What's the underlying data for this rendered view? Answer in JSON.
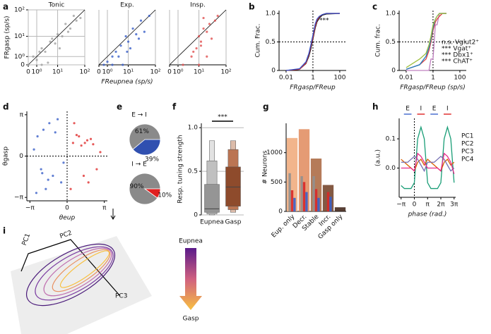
{
  "chart_data": [
    {
      "type": "scatter",
      "panel": "a",
      "title": "Tonic",
      "ylabel": "FRgasp (sp/s)",
      "xscale": "symlog",
      "yscale": "symlog",
      "xlim": [
        0,
        100
      ],
      "ylim": [
        0,
        100
      ],
      "xticks": [
        0,
        {
          "value": 1,
          "label": "10⁰"
        },
        {
          "value": 10,
          "label": "10¹"
        },
        {
          "value": 100,
          "label": "10²"
        }
      ],
      "yticks": [
        0,
        {
          "value": 1,
          "label": "10⁰"
        },
        {
          "value": 10,
          "label": "10¹"
        },
        {
          "value": 100,
          "label": "10²"
        }
      ],
      "grid": true,
      "diagonal": true,
      "series": [
        {
          "color": "#a0a0a0",
          "x": [
            0,
            0.5,
            1,
            2,
            3,
            5,
            8,
            10,
            15,
            20,
            30,
            50,
            2,
            6,
            12,
            25,
            40,
            4,
            1.5,
            70
          ],
          "values": [
            0,
            1,
            0.5,
            3,
            2,
            6,
            5,
            12,
            10,
            30,
            20,
            40,
            0,
            8,
            3,
            15,
            60,
            0.2,
            2,
            50
          ]
        }
      ]
    },
    {
      "type": "scatter",
      "title": "Exp.",
      "xlabel": "FReupnea (sp/s)",
      "xscale": "symlog",
      "yscale": "symlog",
      "xlim": [
        0,
        100
      ],
      "ylim": [
        0,
        100
      ],
      "xticks": [
        0,
        {
          "value": 1,
          "label": "10⁰"
        },
        {
          "value": 10,
          "label": "10¹"
        },
        {
          "value": 100,
          "label": "10²"
        }
      ],
      "grid": true,
      "diagonal": true,
      "series": [
        {
          "color": "#3a5fc8",
          "x": [
            0.5,
            1,
            2,
            3,
            5,
            8,
            10,
            15,
            20,
            30,
            40,
            60,
            6,
            12,
            25,
            4,
            2,
            9
          ],
          "values": [
            0,
            0.3,
            1,
            2,
            4,
            10,
            6,
            20,
            12,
            40,
            15,
            60,
            0,
            3,
            8,
            1,
            0,
            2
          ]
        }
      ]
    },
    {
      "type": "scatter",
      "title": "Insp.",
      "xscale": "symlog",
      "yscale": "symlog",
      "xlim": [
        0,
        100
      ],
      "ylim": [
        0,
        100
      ],
      "xticks": [
        0,
        {
          "value": 1,
          "label": "10⁰"
        },
        {
          "value": 10,
          "label": "10¹"
        },
        {
          "value": 100,
          "label": "10²"
        }
      ],
      "grid": true,
      "diagonal": true,
      "series": [
        {
          "color": "#e05050",
          "x": [
            2,
            5,
            8,
            10,
            12,
            15,
            20,
            25,
            30,
            40,
            10,
            15,
            6,
            20,
            50,
            12
          ],
          "values": [
            0,
            1,
            3,
            10,
            6,
            20,
            15,
            30,
            8,
            40,
            0,
            50,
            2,
            1,
            60,
            4
          ]
        }
      ]
    },
    {
      "type": "line",
      "panel": "b",
      "ylabel": "Cum. Frac.",
      "xlabel": "FRgasp/FReup",
      "xscale": "log",
      "xlim": [
        0.003,
        300
      ],
      "ylim": [
        0,
        1.05
      ],
      "xticks": [
        0.01,
        1,
        100
      ],
      "yticks": [
        0,
        0.5,
        {
          "value": 1,
          "label": "1.0"
        }
      ],
      "vline": 1,
      "hline": 0.5,
      "annotation": "***",
      "x": [
        0.01,
        0.1,
        0.3,
        0.5,
        0.7,
        1,
        1.5,
        2,
        3,
        5,
        10,
        100
      ],
      "series": [
        {
          "color": "#111111",
          "values": [
            0,
            0.02,
            0.12,
            0.25,
            0.38,
            0.55,
            0.75,
            0.85,
            0.92,
            0.97,
            0.99,
            1
          ]
        },
        {
          "color": "#e03030",
          "values": [
            0,
            0.02,
            0.13,
            0.28,
            0.42,
            0.58,
            0.78,
            0.88,
            0.94,
            0.98,
            1,
            1
          ]
        },
        {
          "color": "#3050c8",
          "values": [
            0,
            0.03,
            0.15,
            0.3,
            0.45,
            0.62,
            0.82,
            0.9,
            0.95,
            0.98,
            1,
            1
          ]
        }
      ]
    },
    {
      "type": "line",
      "panel": "c",
      "ylabel": "Cum. frac.",
      "xlabel": "FRgasp/FReup (sp/s)",
      "xscale": "log",
      "xlim": [
        0.003,
        300
      ],
      "ylim": [
        0,
        1.05
      ],
      "xticks": [
        0.01,
        1,
        100
      ],
      "yticks": [
        0,
        0.5,
        {
          "value": 1,
          "label": "1.0"
        }
      ],
      "vline": 1,
      "hline": 0.5,
      "x": [
        0.01,
        0.1,
        0.3,
        0.5,
        0.7,
        1,
        1.5,
        2,
        3,
        5,
        10
      ],
      "series": [
        {
          "name": "n.s. Vglut2⁺",
          "color": "#c080c0",
          "values": [
            0,
            0,
            0,
            0,
            0.2,
            0.2,
            0.8,
            0.8,
            1,
            1,
            1
          ]
        },
        {
          "name": "*** Vgat⁺",
          "color": "#e04040",
          "values": [
            0.02,
            0.1,
            0.2,
            0.35,
            0.5,
            0.7,
            0.85,
            0.9,
            0.95,
            1,
            1
          ]
        },
        {
          "name": "*** Dbx1⁺",
          "color": "#2080c0",
          "values": [
            0.02,
            0.1,
            0.25,
            0.4,
            0.55,
            0.75,
            0.9,
            0.95,
            1,
            1,
            1
          ]
        },
        {
          "name": "*** ChAT⁺",
          "color": "#a0c040",
          "values": [
            0.05,
            0.2,
            0.3,
            0.45,
            0.6,
            0.8,
            0.9,
            0.95,
            1,
            1,
            1
          ]
        }
      ]
    },
    {
      "type": "scatter",
      "panel": "d",
      "ylabel": "θgasp",
      "xlabel": "θeup",
      "xlim": [
        -3.4,
        3.4
      ],
      "ylim": [
        -3.4,
        3.4
      ],
      "xticks": [
        {
          "value": -3.14159,
          "label": "−π"
        },
        0,
        {
          "value": 3.14159,
          "label": "π"
        }
      ],
      "yticks": [
        {
          "value": -3.14159,
          "label": "−π"
        },
        0,
        {
          "value": 3.14159,
          "label": "π"
        }
      ],
      "vline": 0,
      "hline": 0,
      "series": [
        {
          "color": "#3a5fc8",
          "x": [
            -2.5,
            -2,
            -1.5,
            -1,
            -0.8,
            -2.8,
            -1.2,
            -2.2,
            -0.5,
            -1.8,
            -0.3,
            -2.6,
            -1.6,
            -2.1
          ],
          "values": [
            1.5,
            2,
            2.5,
            1.8,
            2.8,
            0.5,
            -1.5,
            -1,
            -2,
            -2.5,
            -0.5,
            -2.8,
            -1.8,
            -1.3
          ]
        },
        {
          "color": "#e03030",
          "x": [
            0.5,
            1,
            1.5,
            2,
            1.2,
            0.8,
            2.5,
            1.8,
            0.3,
            2.8,
            1.4,
            0.6,
            1.7,
            2.2
          ],
          "values": [
            1,
            1.5,
            1,
            1.3,
            0.8,
            1.6,
            -1,
            -2,
            -2.5,
            0.3,
            -1.5,
            2.5,
            1.2,
            0.9
          ]
        }
      ]
    },
    {
      "type": "pie",
      "panel": "e",
      "pies": [
        {
          "label": "E → I",
          "values": [
            61,
            39
          ],
          "value_labels": [
            "61%",
            "39%"
          ],
          "colors": [
            "#8a8a8a",
            "#3050b0"
          ]
        },
        {
          "label": "I → E",
          "values": [
            90,
            10
          ],
          "value_labels": [
            "90%",
            "10%"
          ],
          "colors": [
            "#8a8a8a",
            "#e02020"
          ]
        }
      ]
    },
    {
      "type": "boxen",
      "panel": "f",
      "ylabel": "Resp. tuning strength",
      "ylim": [
        0,
        1.05
      ],
      "yticks": [
        0,
        0.5,
        {
          "value": 1,
          "label": "1.0"
        }
      ],
      "grid": true,
      "annotation": "***",
      "categories": [
        "Eupnea",
        "Gasp"
      ],
      "boxes": [
        {
          "levels": [
            [
              0,
              0.85
            ],
            [
              0.01,
              0.62
            ],
            [
              0.03,
              0.35
            ]
          ],
          "median": 0.07,
          "colors": [
            "#e2e2e2",
            "#c0c0c0",
            "#959595"
          ]
        },
        {
          "levels": [
            [
              0.03,
              0.85
            ],
            [
              0.06,
              0.75
            ],
            [
              0.1,
              0.55
            ]
          ],
          "median": 0.32,
          "colors": [
            "#dcbcaa",
            "#bb7553",
            "#8e4b2c"
          ]
        }
      ]
    },
    {
      "type": "bar",
      "panel": "g",
      "ylabel": "# Neurons",
      "ylim": [
        0,
        1500
      ],
      "yticks": [
        0,
        500,
        1000
      ],
      "categories": [
        "Eup. only",
        "Decr.",
        "Stable",
        "Incr.",
        "Gasp only"
      ],
      "series": [
        {
          "colors": [
            "#f0a878",
            "#e08a5c",
            "#a8643c",
            "#6e3c22",
            "#3a1c10"
          ],
          "values": [
            1250,
            1400,
            900,
            450,
            70
          ]
        },
        {
          "color": "#909090",
          "values": [
            650,
            600,
            600,
            0,
            0
          ]
        },
        {
          "color": "#d82828",
          "values": [
            360,
            500,
            380,
            330,
            0
          ]
        },
        {
          "color": "#3a5fc8",
          "values": [
            230,
            330,
            230,
            250,
            0
          ]
        }
      ]
    },
    {
      "type": "line",
      "panel": "h",
      "ylabel": "(a.u.)",
      "xlabel": "phase (rad.)",
      "xlim": [
        -3.6,
        9.8
      ],
      "ylim": [
        -0.1,
        0.17
      ],
      "xticks": [
        {
          "value": -3.14159,
          "label": "−π"
        },
        0,
        {
          "value": 3.14159,
          "label": "π"
        },
        {
          "value": 6.28319,
          "label": "2π"
        },
        {
          "value": 9.42478,
          "label": "3π"
        }
      ],
      "yticks": [
        {
          "value": 0,
          "label": "0.0"
        },
        0.1
      ],
      "vline": 0,
      "phase_labels": [
        "E",
        "I",
        "E",
        "I"
      ],
      "phase_colors": [
        "#4a70d0",
        "#e03030",
        "#4a70d0",
        "#e03030"
      ],
      "x": [
        -3.1416,
        -2.3562,
        -1.5708,
        -0.7854,
        0,
        0.7854,
        1.5708,
        2.3562,
        3.1416,
        3.927,
        4.7124,
        5.4978,
        6.2832,
        7.0686,
        7.854,
        8.6394,
        9.4248
      ],
      "series": [
        {
          "name": "PC1",
          "color": "#1a9e77",
          "values": [
            -0.06,
            -0.07,
            -0.07,
            -0.07,
            -0.05,
            0.1,
            0.14,
            0.1,
            -0.05,
            -0.07,
            -0.07,
            -0.07,
            -0.05,
            0.1,
            0.14,
            0.1,
            -0.05
          ]
        },
        {
          "name": "PC2",
          "color": "#d95f02",
          "values": [
            0.03,
            0.02,
            0.01,
            0,
            -0.01,
            0.02,
            0.03,
            0.01,
            0.03,
            0.02,
            0.01,
            0,
            -0.01,
            0.02,
            0.03,
            0.01,
            0.02
          ]
        },
        {
          "name": "PC3",
          "color": "#7570b3",
          "values": [
            0.02,
            0.02,
            0.02,
            0.03,
            0.04,
            0.03,
            0.01,
            -0.01,
            0.02,
            0.02,
            0.02,
            0.03,
            0.04,
            0.03,
            0.01,
            -0.01,
            0
          ]
        },
        {
          "name": "PC4",
          "color": "#e7298a",
          "values": [
            0,
            0,
            0,
            0,
            -0.01,
            0.05,
            0.04,
            0.02,
            0,
            0,
            0,
            0,
            -0.01,
            0.05,
            0.04,
            0.02,
            -0.02
          ]
        }
      ]
    },
    {
      "type": "diagram",
      "panel": "i",
      "axes": [
        "PC1",
        "PC2",
        "PC3"
      ],
      "gradient_top": "Eupnea",
      "gradient_bottom": "Gasp"
    }
  ]
}
